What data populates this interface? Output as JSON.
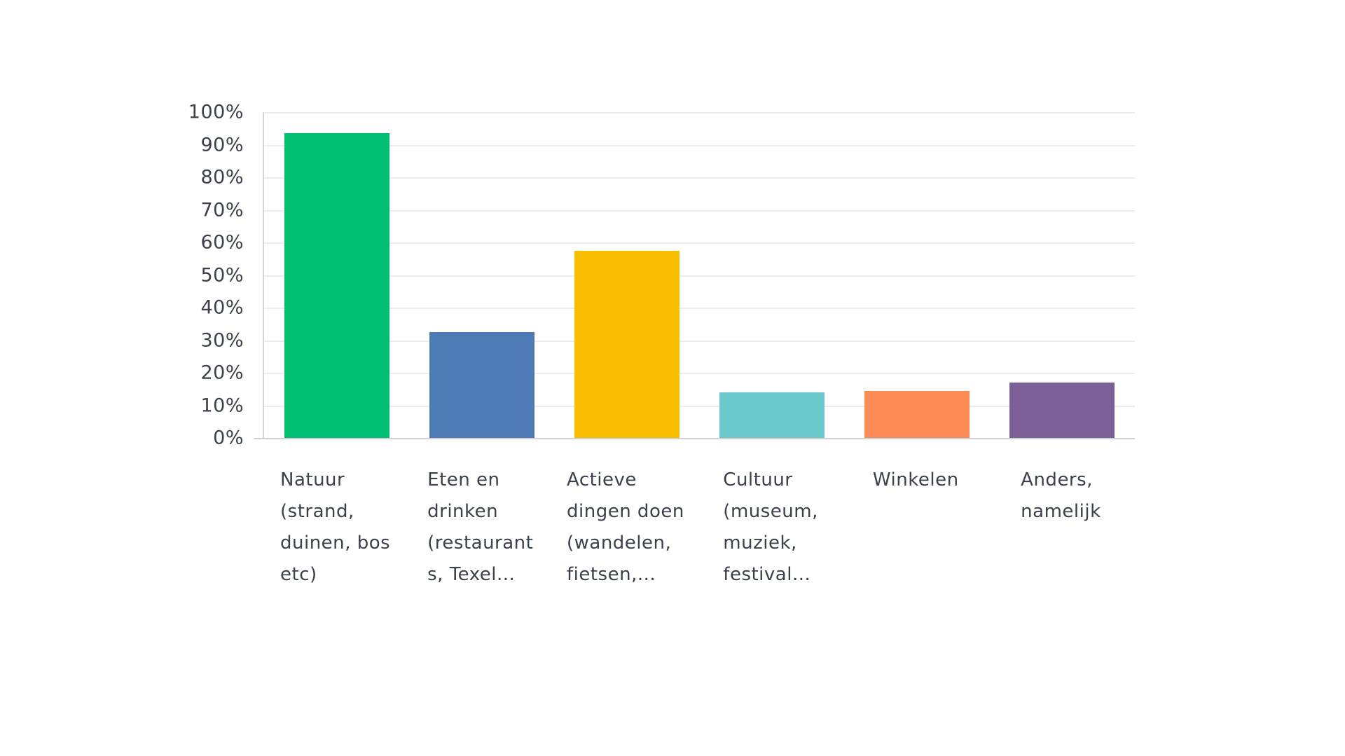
{
  "chart_data": {
    "type": "bar",
    "title": "",
    "xlabel": "",
    "ylabel": "",
    "categories": [
      "Natuur (strand, duinen, bos etc)",
      "Eten en drinken (restaurants, Texel...",
      "Actieve dingen doen (wandelen, fietsen,...",
      "Cultuur (museum, muziek, festival...",
      "Winkelen",
      "Anders, namelijk"
    ],
    "ids": [
      "natuur",
      "eten-en-drinken",
      "actieve-dingen-doen",
      "cultuur",
      "winkelen",
      "anders-namelijk"
    ],
    "label_lines": [
      [
        "Natuur",
        "(strand,",
        "duinen, bos",
        "etc)"
      ],
      [
        "Eten en",
        "drinken",
        "(restaurant",
        "s, Texel..."
      ],
      [
        "Actieve",
        "dingen doen",
        "(wandelen,",
        "fietsen,..."
      ],
      [
        "Cultuur",
        "(museum,",
        "muziek,",
        "festival..."
      ],
      [
        "Winkelen"
      ],
      [
        "Anders,",
        "namelijk"
      ]
    ],
    "values": [
      93.5,
      32.5,
      57.5,
      14,
      14.5,
      17
    ],
    "colors": [
      "#00be72",
      "#4e7ab5",
      "#f9bd00",
      "#6bc8cd",
      "#fc8b55",
      "#7c5f97"
    ],
    "ylim": [
      0,
      100
    ],
    "y_ticks": [
      0,
      10,
      20,
      30,
      40,
      50,
      60,
      70,
      80,
      90,
      100
    ],
    "y_tick_suffix": "%",
    "grid": true,
    "legend": false
  },
  "theme": {
    "text_color": "#3b414c",
    "gridline_color": "#ececec",
    "axis_line_color": "#d0d1d5",
    "background": "#ffffff"
  }
}
